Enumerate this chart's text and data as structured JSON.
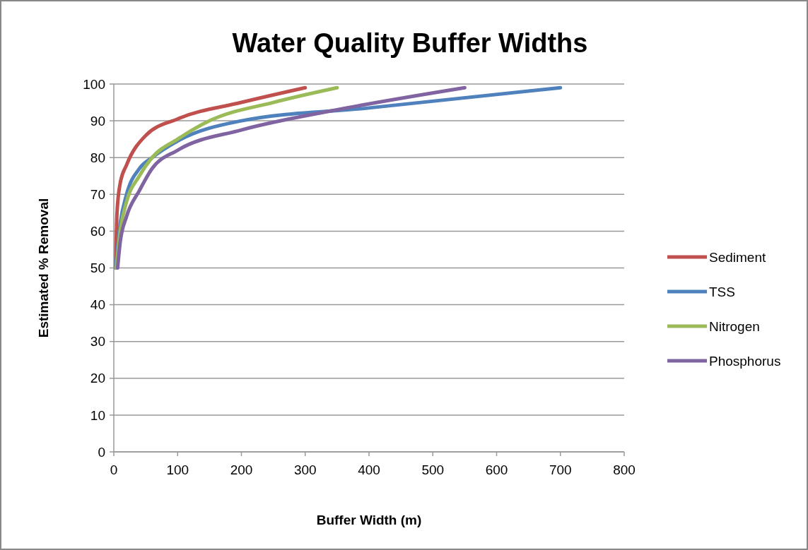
{
  "chart_data": {
    "type": "line",
    "title": "Water Quality Buffer Widths",
    "xlabel": "Buffer Width (m)",
    "ylabel": "Estimated % Removal",
    "xlim": [
      0,
      800
    ],
    "xticks": [
      0,
      100,
      200,
      300,
      400,
      500,
      600,
      700,
      800
    ],
    "ylim": [
      0,
      100
    ],
    "yticks": [
      0,
      10,
      20,
      30,
      40,
      50,
      60,
      70,
      80,
      90,
      100
    ],
    "grid": "y",
    "legend": "right",
    "marker": "none",
    "line_style": "solid",
    "series": [
      {
        "name": "Sediment",
        "color": "#c0504d",
        "x": [
          3,
          5,
          10,
          20,
          50,
          100,
          200,
          300
        ],
        "values": [
          50,
          65,
          73,
          78,
          86,
          90.5,
          95,
          99
        ]
      },
      {
        "name": "TSS",
        "color": "#4f81bd",
        "x": [
          3,
          10,
          20,
          40,
          60,
          100,
          200,
          400,
          700
        ],
        "values": [
          50,
          62,
          70,
          77,
          80,
          84.5,
          90,
          93.5,
          99
        ]
      },
      {
        "name": "Nitrogen",
        "color": "#9bbb59",
        "x": [
          4,
          10,
          20,
          40,
          60,
          100,
          150,
          250,
          350
        ],
        "values": [
          50,
          60,
          68,
          75,
          80,
          85,
          90,
          95,
          99
        ]
      },
      {
        "name": "Phosphorus",
        "color": "#8064a2",
        "x": [
          6,
          10,
          20,
          40,
          60,
          100,
          200,
          350,
          550
        ],
        "values": [
          50,
          57,
          64,
          71,
          77,
          82,
          87.5,
          93,
          99
        ]
      }
    ]
  }
}
